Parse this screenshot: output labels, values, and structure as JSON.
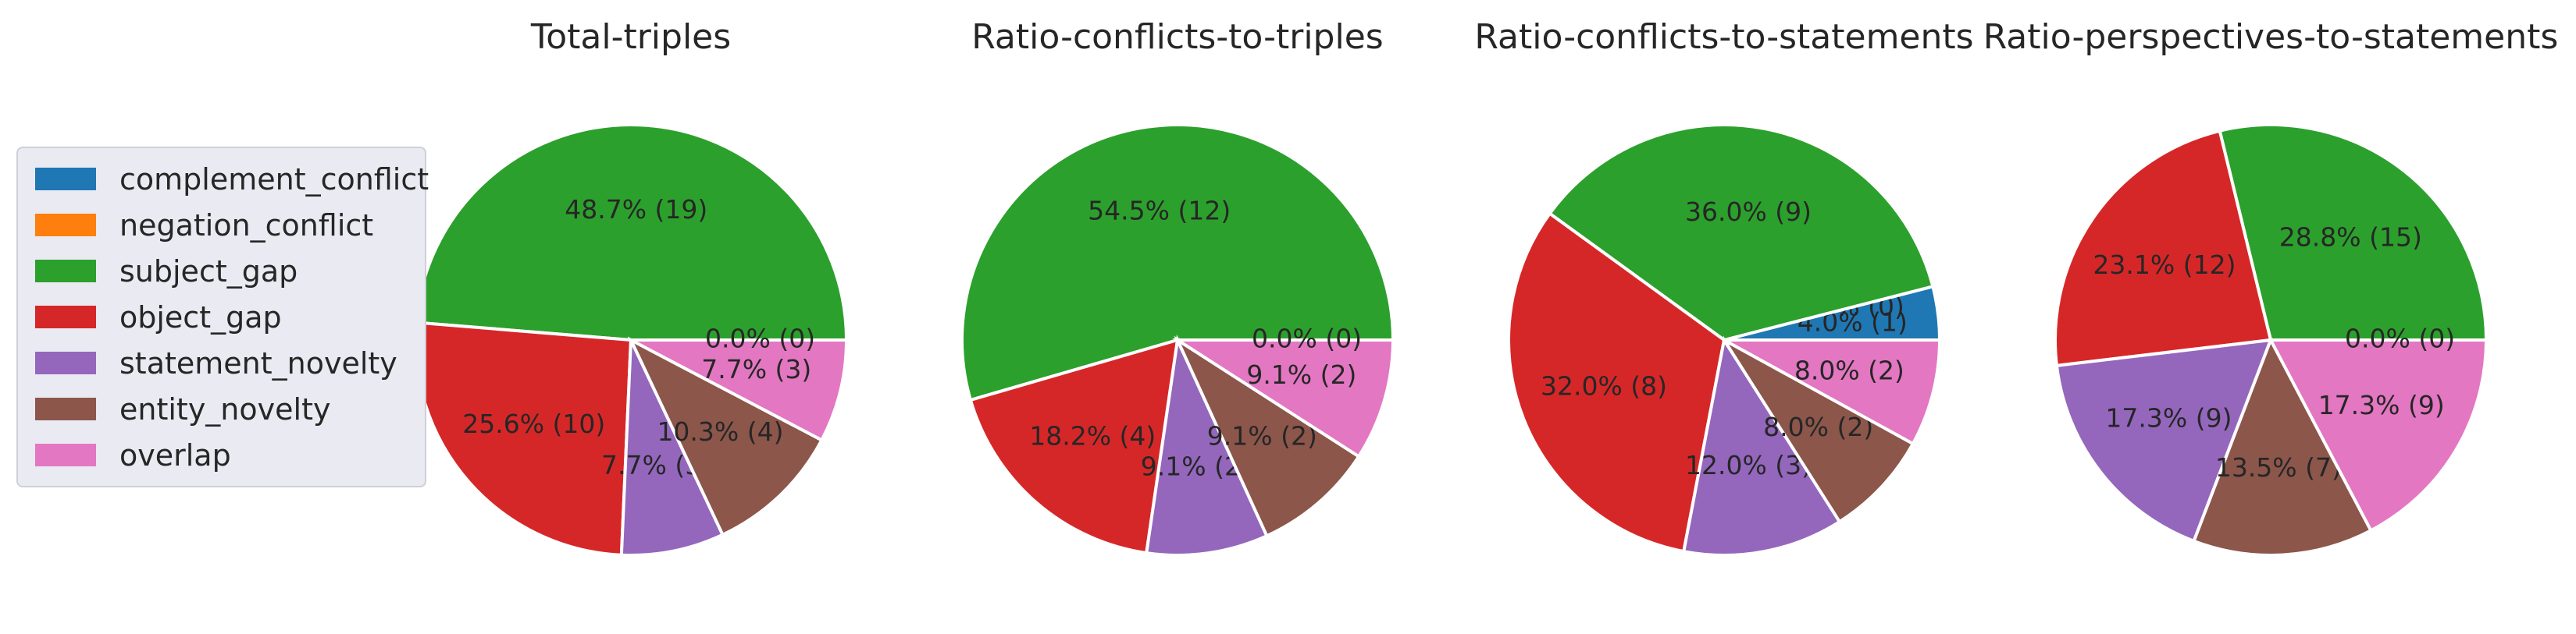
{
  "legend": {
    "items": [
      {
        "label": "complement_conflict",
        "color": "#1f77b4"
      },
      {
        "label": "negation_conflict",
        "color": "#ff7f0e"
      },
      {
        "label": "subject_gap",
        "color": "#2ca02c"
      },
      {
        "label": "object_gap",
        "color": "#d62728"
      },
      {
        "label": "statement_novelty",
        "color": "#9467bd"
      },
      {
        "label": "entity_novelty",
        "color": "#8c564b"
      },
      {
        "label": "overlap",
        "color": "#e377c2"
      }
    ]
  },
  "chart_data": [
    {
      "type": "pie",
      "title": "Total-triples",
      "slices": [
        {
          "category": "subject_gap",
          "percent": 48.7,
          "count": 19,
          "label": "48.7% (19)"
        },
        {
          "category": "object_gap",
          "percent": 25.6,
          "count": 10,
          "label": "25.6% (10)"
        },
        {
          "category": "statement_novelty",
          "percent": 7.7,
          "count": 3,
          "label": "7.7% (3)"
        },
        {
          "category": "entity_novelty",
          "percent": 10.3,
          "count": 4,
          "label": "10.3% (4)"
        },
        {
          "category": "overlap",
          "percent": 7.7,
          "count": 3,
          "label": "7.7% (3)"
        },
        {
          "category": "complement_conflict",
          "percent": 0.0,
          "count": 0,
          "label": "0.0% (0)"
        }
      ]
    },
    {
      "type": "pie",
      "title": "Ratio-conflicts-to-triples",
      "slices": [
        {
          "category": "subject_gap",
          "percent": 54.5,
          "count": 12,
          "label": "54.5% (12)"
        },
        {
          "category": "object_gap",
          "percent": 18.2,
          "count": 4,
          "label": "18.2% (4)"
        },
        {
          "category": "statement_novelty",
          "percent": 9.1,
          "count": 2,
          "label": "9.1% (2)"
        },
        {
          "category": "entity_novelty",
          "percent": 9.1,
          "count": 2,
          "label": "9.1% (2)"
        },
        {
          "category": "overlap",
          "percent": 9.1,
          "count": 2,
          "label": "9.1% (2)"
        },
        {
          "category": "complement_conflict",
          "percent": 0.0,
          "count": 0,
          "label": "0.0% (0)"
        }
      ]
    },
    {
      "type": "pie",
      "title": "Ratio-conflicts-to-statements",
      "slices": [
        {
          "category": "complement_conflict",
          "percent": 4.0,
          "count": 1,
          "label": "4.0% (1)"
        },
        {
          "category": "negation_conflict",
          "percent": 0.0,
          "count": 0,
          "label": "0.0% (0)"
        },
        {
          "category": "subject_gap",
          "percent": 36.0,
          "count": 9,
          "label": "36.0% (9)"
        },
        {
          "category": "object_gap",
          "percent": 32.0,
          "count": 8,
          "label": "32.0% (8)"
        },
        {
          "category": "statement_novelty",
          "percent": 12.0,
          "count": 3,
          "label": "12.0% (3)"
        },
        {
          "category": "entity_novelty",
          "percent": 8.0,
          "count": 2,
          "label": "8.0% (2)"
        },
        {
          "category": "overlap",
          "percent": 8.0,
          "count": 2,
          "label": "8.0% (2)"
        }
      ]
    },
    {
      "type": "pie",
      "title": "Ratio-perspectives-to-statements",
      "slices": [
        {
          "category": "subject_gap",
          "percent": 28.8,
          "count": 15,
          "label": "28.8% (15)"
        },
        {
          "category": "object_gap",
          "percent": 23.1,
          "count": 12,
          "label": "23.1% (12)"
        },
        {
          "category": "statement_novelty",
          "percent": 17.3,
          "count": 9,
          "label": "17.3% (9)"
        },
        {
          "category": "entity_novelty",
          "percent": 13.5,
          "count": 7,
          "label": "13.5% (7)"
        },
        {
          "category": "overlap",
          "percent": 17.3,
          "count": 9,
          "label": "17.3% (9)"
        },
        {
          "category": "complement_conflict",
          "percent": 0.0,
          "count": 0,
          "label": "0.0% (0)"
        }
      ]
    }
  ]
}
